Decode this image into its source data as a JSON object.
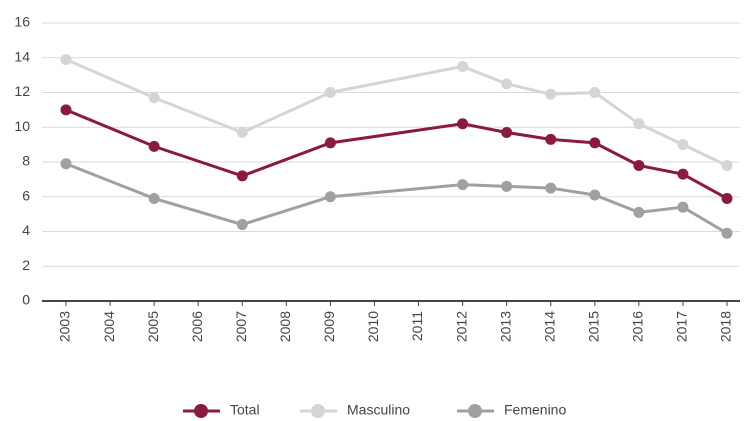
{
  "chart_data": {
    "type": "line",
    "x": [
      2003,
      2005,
      2007,
      2009,
      2012,
      2013,
      2014,
      2015,
      2016,
      2017,
      2018
    ],
    "series": [
      {
        "name": "Total",
        "color": "#8b1a3f",
        "values": [
          11.0,
          8.9,
          7.2,
          9.1,
          10.2,
          9.7,
          9.3,
          9.1,
          7.8,
          7.3,
          5.9
        ]
      },
      {
        "name": "Masculino",
        "color": "#d3d6d8",
        "values": [
          13.9,
          11.7,
          9.7,
          12.0,
          13.5,
          12.5,
          11.9,
          12.0,
          10.2,
          9.0,
          7.8
        ]
      },
      {
        "name": "Femenino",
        "color": "#a0a0a0",
        "values": [
          7.9,
          5.9,
          4.4,
          6.0,
          6.7,
          6.6,
          6.5,
          6.1,
          5.1,
          5.4,
          3.9
        ]
      }
    ],
    "xlim": [
      2003,
      2018
    ],
    "xticks": [
      2003,
      2004,
      2005,
      2006,
      2007,
      2008,
      2009,
      2010,
      2011,
      2012,
      2013,
      2014,
      2015,
      2016,
      2017,
      2018
    ],
    "ylim": [
      0,
      16
    ],
    "yticks": [
      0,
      2,
      4,
      6,
      8,
      10,
      12,
      14,
      16
    ],
    "grid": true,
    "legend": "bottom"
  }
}
